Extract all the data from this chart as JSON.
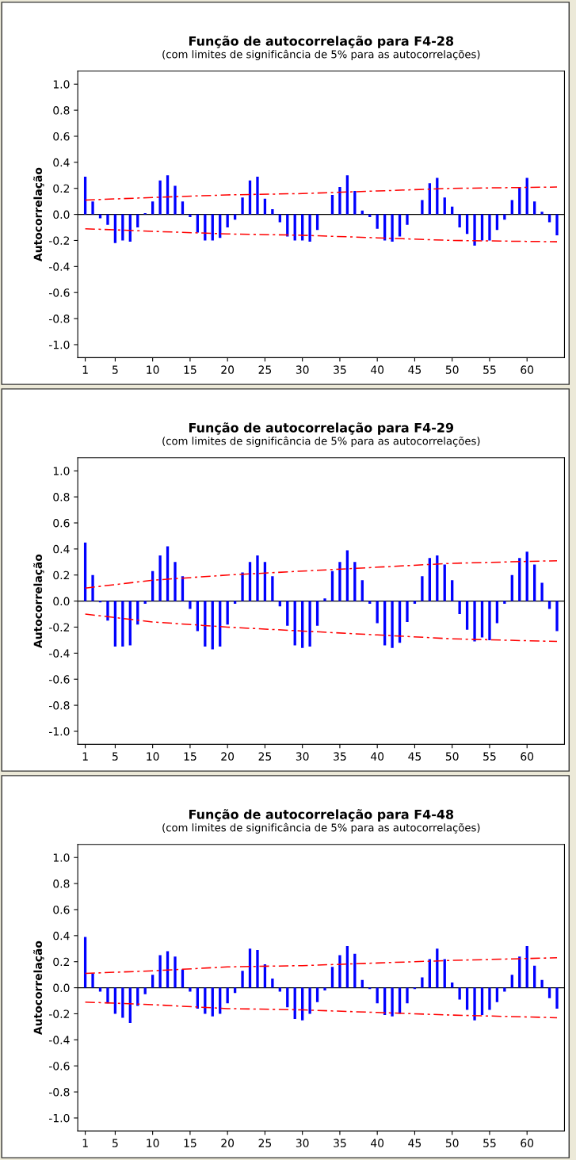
{
  "chart_data": [
    {
      "type": "bar",
      "title": "Função de autocorrelação para F4-28",
      "subtitle": "(com limites de significância de 5% para as autocorrelações)",
      "ylabel": "Autocorrelação",
      "x": [
        1,
        2,
        3,
        4,
        5,
        6,
        7,
        8,
        9,
        10,
        11,
        12,
        13,
        14,
        15,
        16,
        17,
        18,
        19,
        20,
        21,
        22,
        23,
        24,
        25,
        26,
        27,
        28,
        29,
        30,
        31,
        32,
        33,
        34,
        35,
        36,
        37,
        38,
        39,
        40,
        41,
        42,
        43,
        44,
        45,
        46,
        47,
        48,
        49,
        50,
        51,
        52,
        53,
        54,
        55,
        56,
        57,
        58,
        59,
        60,
        61,
        62,
        63,
        64
      ],
      "series": [
        {
          "color": "#0000ff",
          "values": [
            0.29,
            0.1,
            -0.03,
            -0.08,
            -0.22,
            -0.2,
            -0.21,
            -0.1,
            0.01,
            0.1,
            0.26,
            0.3,
            0.22,
            0.1,
            -0.02,
            -0.14,
            -0.2,
            -0.2,
            -0.18,
            -0.1,
            -0.04,
            0.13,
            0.26,
            0.29,
            0.12,
            0.04,
            -0.06,
            -0.17,
            -0.2,
            -0.2,
            -0.21,
            -0.12,
            0.0,
            0.15,
            0.21,
            0.3,
            0.18,
            0.03,
            -0.02,
            -0.11,
            -0.2,
            -0.21,
            -0.17,
            -0.08,
            0.0,
            0.11,
            0.24,
            0.28,
            0.13,
            0.06,
            -0.1,
            -0.15,
            -0.24,
            -0.2,
            -0.2,
            -0.12,
            -0.04,
            0.11,
            0.21,
            0.28,
            0.1,
            0.02,
            -0.06,
            -0.16
          ]
        },
        {
          "type": "line",
          "color": "#ff0000",
          "line_style": "dashed",
          "x": [
            1,
            10,
            20,
            30,
            40,
            50,
            64
          ],
          "values": [
            0.11,
            0.13,
            0.15,
            0.16,
            0.18,
            0.2,
            0.21
          ]
        },
        {
          "type": "line",
          "color": "#ff0000",
          "line_style": "dashed",
          "x": [
            1,
            10,
            20,
            30,
            40,
            50,
            64
          ],
          "values": [
            -0.11,
            -0.13,
            -0.15,
            -0.16,
            -0.18,
            -0.2,
            -0.21
          ]
        }
      ],
      "ref_lines": [
        {
          "axis": "y",
          "value": 0,
          "color": "#000000"
        }
      ],
      "xlim": [
        0,
        65
      ],
      "xticks": [
        1,
        5,
        10,
        15,
        20,
        25,
        30,
        35,
        40,
        45,
        50,
        55,
        60
      ],
      "ylim": [
        -1.1,
        1.1
      ],
      "yticks": [
        {
          "value": -1.0,
          "label": "-1.0"
        },
        {
          "value": -0.8,
          "label": "-0.8"
        },
        {
          "value": -0.6,
          "label": "-0.6"
        },
        {
          "value": -0.4,
          "label": "-0.4"
        },
        {
          "value": -0.2,
          "label": "-0.2"
        },
        {
          "value": 0.0,
          "label": "0.0"
        },
        {
          "value": 0.2,
          "label": "0.2"
        },
        {
          "value": 0.4,
          "label": "0.4"
        },
        {
          "value": 0.6,
          "label": "0.6"
        },
        {
          "value": 0.8,
          "label": "0.8"
        },
        {
          "value": 1.0,
          "label": "1.0"
        }
      ],
      "grid": false,
      "legend": false
    },
    {
      "type": "bar",
      "title": "Função de autocorrelação para F4-29",
      "subtitle": "(com limites de significância de 5% para as autocorrelações)",
      "ylabel": "Autocorrelação",
      "x": [
        1,
        2,
        3,
        4,
        5,
        6,
        7,
        8,
        9,
        10,
        11,
        12,
        13,
        14,
        15,
        16,
        17,
        18,
        19,
        20,
        21,
        22,
        23,
        24,
        25,
        26,
        27,
        28,
        29,
        30,
        31,
        32,
        33,
        34,
        35,
        36,
        37,
        38,
        39,
        40,
        41,
        42,
        43,
        44,
        45,
        46,
        47,
        48,
        49,
        50,
        51,
        52,
        53,
        54,
        55,
        56,
        57,
        58,
        59,
        60,
        61,
        62,
        63,
        64
      ],
      "series": [
        {
          "color": "#0000ff",
          "values": [
            0.45,
            0.2,
            -0.01,
            -0.15,
            -0.35,
            -0.35,
            -0.34,
            -0.18,
            -0.02,
            0.23,
            0.35,
            0.42,
            0.3,
            0.19,
            -0.06,
            -0.23,
            -0.35,
            -0.37,
            -0.35,
            -0.18,
            -0.02,
            0.22,
            0.3,
            0.35,
            0.3,
            0.19,
            -0.04,
            -0.19,
            -0.34,
            -0.36,
            -0.35,
            -0.19,
            0.02,
            0.23,
            0.3,
            0.39,
            0.3,
            0.16,
            -0.02,
            -0.17,
            -0.34,
            -0.36,
            -0.32,
            -0.16,
            -0.02,
            0.19,
            0.33,
            0.35,
            0.28,
            0.16,
            -0.1,
            -0.22,
            -0.31,
            -0.28,
            -0.3,
            -0.17,
            -0.02,
            0.2,
            0.33,
            0.38,
            0.28,
            0.14,
            -0.06,
            -0.23
          ]
        },
        {
          "type": "line",
          "color": "#ff0000",
          "line_style": "dashed",
          "x": [
            1,
            10,
            20,
            30,
            40,
            50,
            64
          ],
          "values": [
            0.1,
            0.16,
            0.2,
            0.23,
            0.26,
            0.29,
            0.31
          ]
        },
        {
          "type": "line",
          "color": "#ff0000",
          "line_style": "dashed",
          "x": [
            1,
            10,
            20,
            30,
            40,
            50,
            64
          ],
          "values": [
            -0.1,
            -0.16,
            -0.2,
            -0.23,
            -0.26,
            -0.29,
            -0.31
          ]
        }
      ],
      "ref_lines": [
        {
          "axis": "y",
          "value": 0,
          "color": "#000000"
        }
      ],
      "xlim": [
        0,
        65
      ],
      "xticks": [
        1,
        5,
        10,
        15,
        20,
        25,
        30,
        35,
        40,
        45,
        50,
        55,
        60
      ],
      "ylim": [
        -1.1,
        1.1
      ],
      "yticks": [
        {
          "value": -1.0,
          "label": "-1.0"
        },
        {
          "value": -0.8,
          "label": "-0.8"
        },
        {
          "value": -0.6,
          "label": "-0.6"
        },
        {
          "value": -0.4,
          "label": "-0.4"
        },
        {
          "value": -0.2,
          "label": "-0.2"
        },
        {
          "value": 0.0,
          "label": "0.0"
        },
        {
          "value": 0.2,
          "label": "0.2"
        },
        {
          "value": 0.4,
          "label": "0.4"
        },
        {
          "value": 0.6,
          "label": "0.6"
        },
        {
          "value": 0.8,
          "label": "0.8"
        },
        {
          "value": 1.0,
          "label": "1.0"
        }
      ],
      "grid": false,
      "legend": false
    },
    {
      "type": "bar",
      "title": "Função de autocorrelação para F4-48",
      "subtitle": "(com limites de significância de 5% para as autocorrelações)",
      "ylabel": "Autocorrelação",
      "x": [
        1,
        2,
        3,
        4,
        5,
        6,
        7,
        8,
        9,
        10,
        11,
        12,
        13,
        14,
        15,
        16,
        17,
        18,
        19,
        20,
        21,
        22,
        23,
        24,
        25,
        26,
        27,
        28,
        29,
        30,
        31,
        32,
        33,
        34,
        35,
        36,
        37,
        38,
        39,
        40,
        41,
        42,
        43,
        44,
        45,
        46,
        47,
        48,
        49,
        50,
        51,
        52,
        53,
        54,
        55,
        56,
        57,
        58,
        59,
        60,
        61,
        62,
        63,
        64
      ],
      "series": [
        {
          "color": "#0000ff",
          "values": [
            0.39,
            0.11,
            -0.03,
            -0.12,
            -0.2,
            -0.23,
            -0.27,
            -0.14,
            -0.05,
            0.1,
            0.25,
            0.28,
            0.24,
            0.14,
            -0.03,
            -0.16,
            -0.2,
            -0.22,
            -0.2,
            -0.12,
            -0.04,
            0.13,
            0.3,
            0.29,
            0.18,
            0.07,
            -0.03,
            -0.15,
            -0.24,
            -0.25,
            -0.2,
            -0.11,
            -0.02,
            0.16,
            0.25,
            0.32,
            0.26,
            0.06,
            -0.01,
            -0.12,
            -0.21,
            -0.22,
            -0.2,
            -0.12,
            -0.01,
            0.08,
            0.22,
            0.3,
            0.22,
            0.04,
            -0.09,
            -0.17,
            -0.25,
            -0.21,
            -0.17,
            -0.11,
            -0.03,
            0.1,
            0.24,
            0.32,
            0.17,
            0.06,
            -0.08,
            -0.16
          ]
        },
        {
          "type": "line",
          "color": "#ff0000",
          "line_style": "dashed",
          "x": [
            1,
            10,
            20,
            30,
            40,
            50,
            64
          ],
          "values": [
            0.11,
            0.13,
            0.16,
            0.17,
            0.19,
            0.21,
            0.23
          ]
        },
        {
          "type": "line",
          "color": "#ff0000",
          "line_style": "dashed",
          "x": [
            1,
            10,
            20,
            30,
            40,
            50,
            64
          ],
          "values": [
            -0.11,
            -0.13,
            -0.16,
            -0.17,
            -0.19,
            -0.21,
            -0.23
          ]
        }
      ],
      "ref_lines": [
        {
          "axis": "y",
          "value": 0,
          "color": "#000000"
        }
      ],
      "xlim": [
        0,
        65
      ],
      "xticks": [
        1,
        5,
        10,
        15,
        20,
        25,
        30,
        35,
        40,
        45,
        50,
        55,
        60
      ],
      "ylim": [
        -1.1,
        1.1
      ],
      "yticks": [
        {
          "value": -1.0,
          "label": "-1.0"
        },
        {
          "value": -0.8,
          "label": "-0.8"
        },
        {
          "value": -0.6,
          "label": "-0.6"
        },
        {
          "value": -0.4,
          "label": "-0.4"
        },
        {
          "value": -0.2,
          "label": "-0.2"
        },
        {
          "value": 0.0,
          "label": "0.0"
        },
        {
          "value": 0.2,
          "label": "0.2"
        },
        {
          "value": 0.4,
          "label": "0.4"
        },
        {
          "value": 0.6,
          "label": "0.6"
        },
        {
          "value": 0.8,
          "label": "0.8"
        },
        {
          "value": 1.0,
          "label": "1.0"
        }
      ],
      "grid": false,
      "legend": false
    }
  ]
}
